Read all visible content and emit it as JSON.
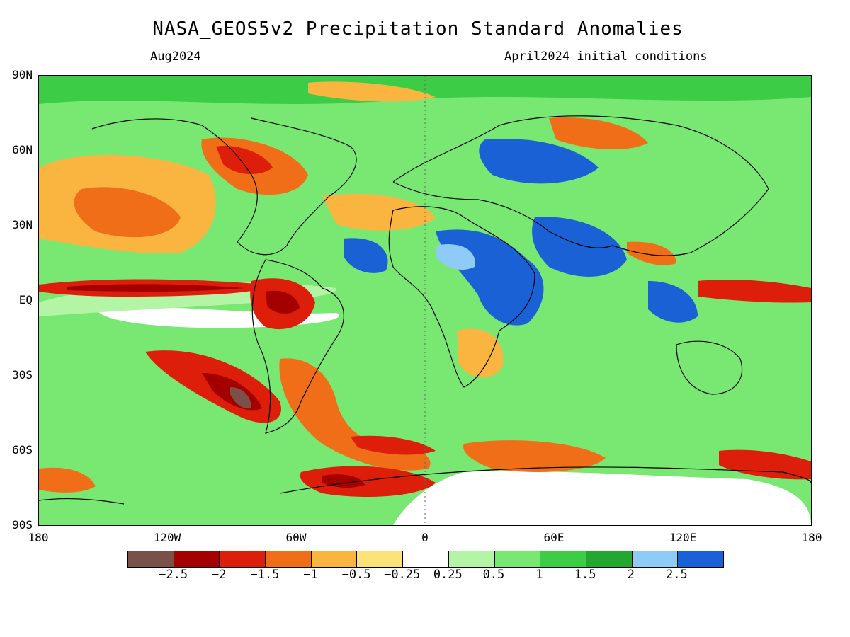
{
  "title": "NASA_GEOS5v2 Precipitation Standard Anomalies",
  "subtitle_left": "Aug2024",
  "subtitle_right": "April2024 initial conditions",
  "lat_labels": [
    "90N",
    "60N",
    "30N",
    "EQ",
    "30S",
    "60S",
    "90S"
  ],
  "lon_labels": [
    "180",
    "120W",
    "60W",
    "0",
    "60E",
    "120E",
    "180"
  ],
  "colorbar": {
    "colors": [
      "#7a5148",
      "#a50000",
      "#dc1e0a",
      "#f06e18",
      "#f9b540",
      "#fbe27a",
      "#ffffff",
      "#b3f5a5",
      "#79e872",
      "#3dcc45",
      "#22a830",
      "#8ecbf7",
      "#1a61d6"
    ],
    "labels": [
      "−2.5",
      "−2",
      "−1.5",
      "−1",
      "−0.5",
      "−0.25",
      "0.25",
      "0.5",
      "1",
      "1.5",
      "2",
      "2.5"
    ]
  },
  "map": {
    "projection": "equirectangular",
    "lon_range": [
      -180,
      180
    ],
    "lat_range": [
      -90,
      90
    ],
    "gridlines": "dotted at 0° longitude",
    "coastlines": true
  }
}
